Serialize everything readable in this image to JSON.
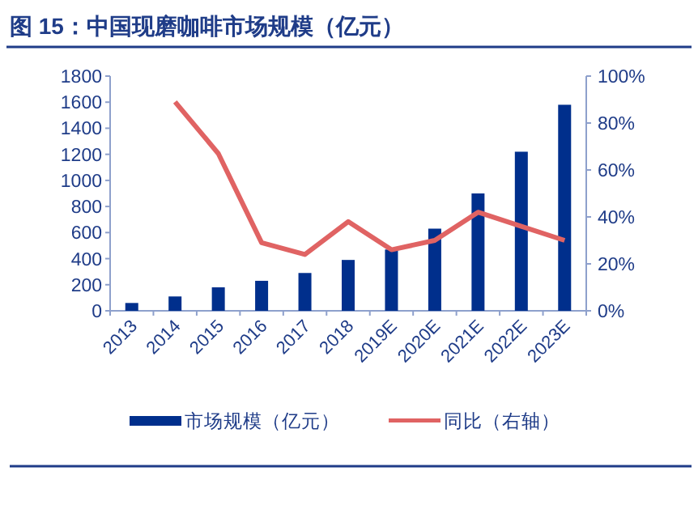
{
  "chart_data": {
    "type": "bar",
    "title": "图 15：中国现磨咖啡市场规模（亿元）",
    "categories": [
      "2013",
      "2014",
      "2015",
      "2016",
      "2017",
      "2018",
      "2019E",
      "2020E",
      "2021E",
      "2022E",
      "2023E"
    ],
    "series": [
      {
        "name": "市场规模（亿元）",
        "color": "#002f8c",
        "values": [
          60,
          110,
          180,
          230,
          290,
          390,
          470,
          630,
          900,
          1220,
          1580
        ]
      },
      {
        "name": "同比（右轴）",
        "type": "line",
        "axis": "y2",
        "color": "#e06363",
        "values": [
          null,
          89,
          67,
          29,
          24,
          38,
          26,
          30,
          42,
          36,
          30
        ]
      }
    ],
    "ylim": [
      0,
      1800
    ],
    "yticks": [
      0,
      200,
      400,
      600,
      800,
      1000,
      1200,
      1400,
      1600,
      1800
    ],
    "y2lim": [
      0,
      100
    ],
    "y2ticks": [
      {
        "value": 0,
        "label": "0%"
      },
      {
        "value": 20,
        "label": "20%"
      },
      {
        "value": 40,
        "label": "40%"
      },
      {
        "value": 60,
        "label": "60%"
      },
      {
        "value": 80,
        "label": "80%"
      },
      {
        "value": 100,
        "label": "100%"
      }
    ],
    "legend": "bottom"
  }
}
